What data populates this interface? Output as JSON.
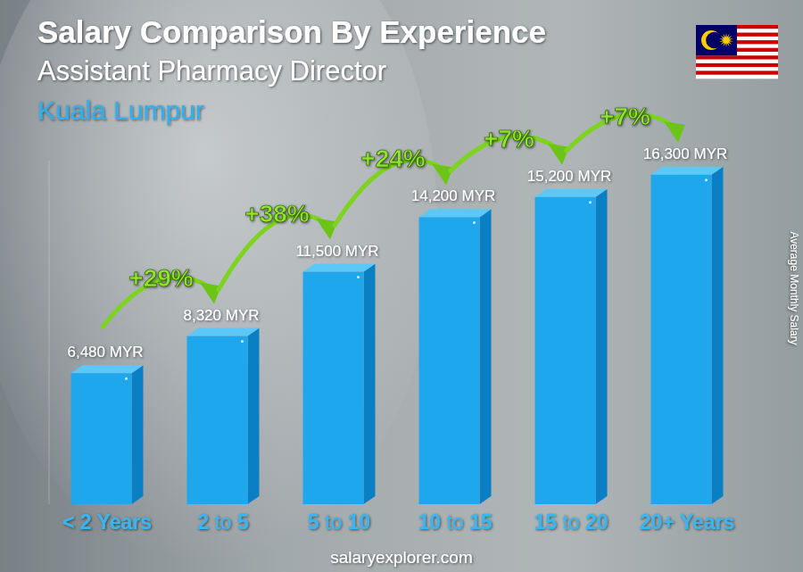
{
  "chart_data": {
    "type": "bar",
    "title": "Salary Comparison By Experience",
    "subtitle": "Assistant Pharmacy Director",
    "annotations": [
      "Kuala Lumpur",
      "salaryexplorer.com"
    ],
    "ylabel": "Average Monthly Salary",
    "categories": [
      "< 2 Years",
      "2 to 5",
      "5 to 10",
      "10 to 15",
      "15 to 20",
      "20+ Years"
    ],
    "values": [
      6480,
      8320,
      11500,
      14200,
      15200,
      16300
    ],
    "value_labels": [
      "6,480 MYR",
      "8,320 MYR",
      "11,500 MYR",
      "14,200 MYR",
      "15,200 MYR",
      "16,300 MYR"
    ],
    "changes": [
      29,
      38,
      24,
      7,
      7
    ],
    "change_labels": [
      "+29%",
      "+38%",
      "+24%",
      "+7%",
      "+7%"
    ],
    "color": "#1ea7ec",
    "ylim": [
      0,
      17000
    ],
    "grid": false,
    "data_labels": true,
    "tick_labels": "x"
  }
}
